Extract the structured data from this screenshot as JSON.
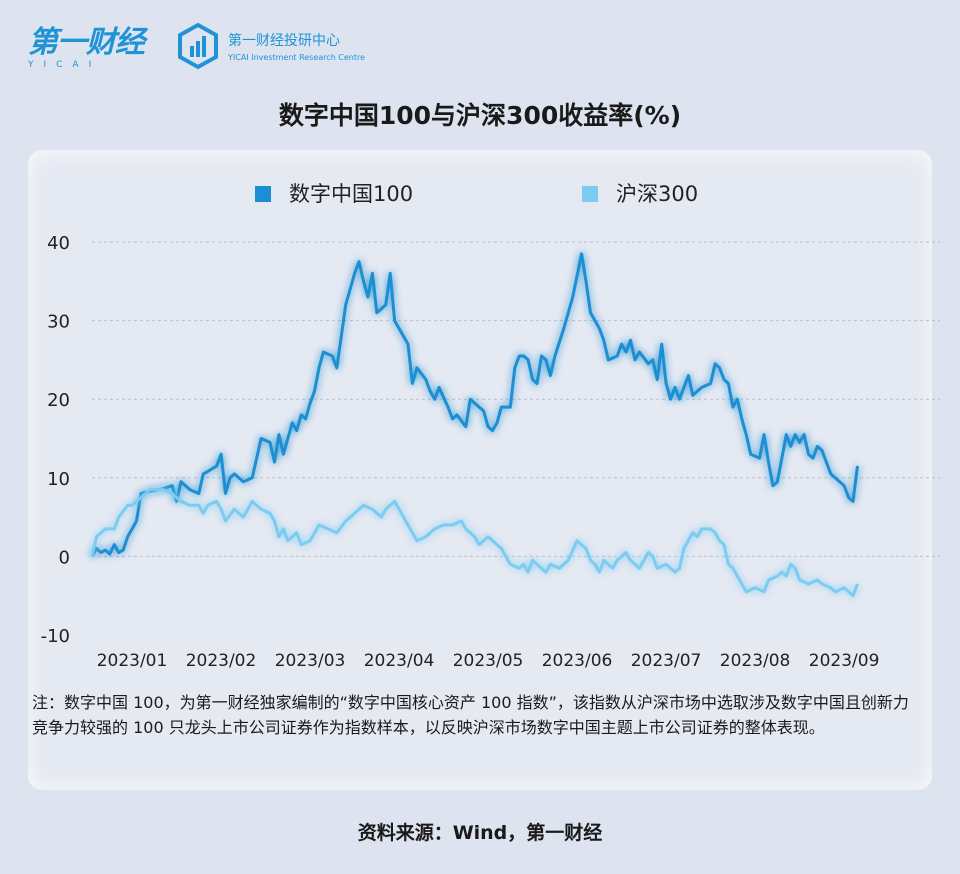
{
  "header": {
    "logo_cn": "第一财经",
    "logo_en": "YICAI",
    "research_cn": "第一财经投研中心",
    "research_en": "YICAI Investment Research Centre"
  },
  "title": "数字中国100与沪深300收益率(%)",
  "colors": {
    "series1": "#1a8fd2",
    "series2": "#7ccbf0",
    "grid": "#b9bfcb",
    "text": "#222222"
  },
  "chart_data": {
    "type": "line",
    "title": "数字中国100与沪深300收益率(%)",
    "xlabel": "",
    "ylabel": "",
    "ylim": [
      -10,
      40
    ],
    "yticks": [
      -10,
      0,
      10,
      20,
      30,
      40
    ],
    "xticks": [
      "2023/01",
      "2023/02",
      "2023/03",
      "2023/04",
      "2023/05",
      "2023/06",
      "2023/07",
      "2023/08",
      "2023/09"
    ],
    "grid": "horizontal dashed",
    "legend": "top-center",
    "x_domain": [
      0,
      9.19
    ],
    "series": [
      {
        "name": "数字中国100",
        "points": [
          [
            0.0,
            0.0
          ],
          [
            0.05,
            1.0
          ],
          [
            0.1,
            0.5
          ],
          [
            0.15,
            0.8
          ],
          [
            0.2,
            0.3
          ],
          [
            0.25,
            1.5
          ],
          [
            0.3,
            0.5
          ],
          [
            0.35,
            0.8
          ],
          [
            0.4,
            2.5
          ],
          [
            0.5,
            4.5
          ],
          [
            0.55,
            8.0
          ],
          [
            0.65,
            8.3
          ],
          [
            0.8,
            8.6
          ],
          [
            0.9,
            9.0
          ],
          [
            0.95,
            7.0
          ],
          [
            1.0,
            9.5
          ],
          [
            1.1,
            8.5
          ],
          [
            1.2,
            8.0
          ],
          [
            1.25,
            10.5
          ],
          [
            1.3,
            10.8
          ],
          [
            1.4,
            11.5
          ],
          [
            1.45,
            13.0
          ],
          [
            1.5,
            8.0
          ],
          [
            1.55,
            10.0
          ],
          [
            1.6,
            10.5
          ],
          [
            1.7,
            9.5
          ],
          [
            1.8,
            10.0
          ],
          [
            1.9,
            15.0
          ],
          [
            2.0,
            14.5
          ],
          [
            2.05,
            12.0
          ],
          [
            2.1,
            15.5
          ],
          [
            2.15,
            13.0
          ],
          [
            2.2,
            15.0
          ],
          [
            2.25,
            17.0
          ],
          [
            2.3,
            16.0
          ],
          [
            2.35,
            18.0
          ],
          [
            2.4,
            17.5
          ],
          [
            2.45,
            19.5
          ],
          [
            2.5,
            21.0
          ],
          [
            2.55,
            24.0
          ],
          [
            2.6,
            26.0
          ],
          [
            2.7,
            25.5
          ],
          [
            2.75,
            24.0
          ],
          [
            2.85,
            32.0
          ],
          [
            2.95,
            36.0
          ],
          [
            3.0,
            37.5
          ],
          [
            3.05,
            35.0
          ],
          [
            3.1,
            33.0
          ],
          [
            3.15,
            36.0
          ],
          [
            3.2,
            31.0
          ],
          [
            3.3,
            32.0
          ],
          [
            3.35,
            36.0
          ],
          [
            3.4,
            30.0
          ],
          [
            3.5,
            28.0
          ],
          [
            3.55,
            27.0
          ],
          [
            3.6,
            22.0
          ],
          [
            3.65,
            24.0
          ],
          [
            3.75,
            22.5
          ],
          [
            3.8,
            21.0
          ],
          [
            3.85,
            20.0
          ],
          [
            3.9,
            21.5
          ],
          [
            4.0,
            19.0
          ],
          [
            4.05,
            17.5
          ],
          [
            4.1,
            18.0
          ],
          [
            4.2,
            16.5
          ],
          [
            4.25,
            20.0
          ],
          [
            4.3,
            19.5
          ],
          [
            4.4,
            18.5
          ],
          [
            4.45,
            16.5
          ],
          [
            4.5,
            16.0
          ],
          [
            4.55,
            17.0
          ],
          [
            4.6,
            19.0
          ],
          [
            4.7,
            19.0
          ],
          [
            4.75,
            24.0
          ],
          [
            4.8,
            25.5
          ],
          [
            4.85,
            25.5
          ],
          [
            4.9,
            25.0
          ],
          [
            4.95,
            22.5
          ],
          [
            5.0,
            22.0
          ],
          [
            5.05,
            25.5
          ],
          [
            5.1,
            25.0
          ],
          [
            5.15,
            23.0
          ],
          [
            5.2,
            25.5
          ],
          [
            5.3,
            29.0
          ],
          [
            5.4,
            33.0
          ],
          [
            5.5,
            38.5
          ],
          [
            5.55,
            35.0
          ],
          [
            5.6,
            31.0
          ],
          [
            5.7,
            29.0
          ],
          [
            5.75,
            27.5
          ],
          [
            5.8,
            25.0
          ],
          [
            5.9,
            25.5
          ],
          [
            5.95,
            27.0
          ],
          [
            6.0,
            26.0
          ],
          [
            6.05,
            27.5
          ],
          [
            6.1,
            25.0
          ],
          [
            6.15,
            26.0
          ],
          [
            6.25,
            24.5
          ],
          [
            6.3,
            25.0
          ],
          [
            6.35,
            22.5
          ],
          [
            6.4,
            27.0
          ],
          [
            6.45,
            22.0
          ],
          [
            6.5,
            20.0
          ],
          [
            6.55,
            21.5
          ],
          [
            6.6,
            20.0
          ],
          [
            6.7,
            23.0
          ],
          [
            6.75,
            20.5
          ],
          [
            6.85,
            21.5
          ],
          [
            6.95,
            22.0
          ],
          [
            7.0,
            24.5
          ],
          [
            7.05,
            24.0
          ],
          [
            7.1,
            22.5
          ],
          [
            7.15,
            22.0
          ],
          [
            7.2,
            19.0
          ],
          [
            7.25,
            20.0
          ],
          [
            7.3,
            17.5
          ],
          [
            7.35,
            15.5
          ],
          [
            7.4,
            13.0
          ],
          [
            7.5,
            12.5
          ],
          [
            7.55,
            15.5
          ],
          [
            7.6,
            12.0
          ],
          [
            7.65,
            9.0
          ],
          [
            7.7,
            9.5
          ],
          [
            7.8,
            15.5
          ],
          [
            7.85,
            14.0
          ],
          [
            7.9,
            15.5
          ],
          [
            7.95,
            14.5
          ],
          [
            8.0,
            15.5
          ],
          [
            8.05,
            13.0
          ],
          [
            8.1,
            12.5
          ],
          [
            8.15,
            14.0
          ],
          [
            8.2,
            13.5
          ],
          [
            8.25,
            12.0
          ],
          [
            8.3,
            10.5
          ],
          [
            8.4,
            9.5
          ],
          [
            8.45,
            9.0
          ],
          [
            8.5,
            7.5
          ],
          [
            8.55,
            7.0
          ],
          [
            8.6,
            11.5
          ]
        ]
      },
      {
        "name": "沪深300",
        "points": [
          [
            0.0,
            0.0
          ],
          [
            0.05,
            2.5
          ],
          [
            0.15,
            3.5
          ],
          [
            0.25,
            3.5
          ],
          [
            0.3,
            5.0
          ],
          [
            0.4,
            6.5
          ],
          [
            0.45,
            6.5
          ],
          [
            0.55,
            7.5
          ],
          [
            0.65,
            8.5
          ],
          [
            0.8,
            8.5
          ],
          [
            0.9,
            8.0
          ],
          [
            1.0,
            7.0
          ],
          [
            1.1,
            6.5
          ],
          [
            1.2,
            6.5
          ],
          [
            1.25,
            5.5
          ],
          [
            1.3,
            6.5
          ],
          [
            1.4,
            7.0
          ],
          [
            1.45,
            6.0
          ],
          [
            1.5,
            4.5
          ],
          [
            1.6,
            6.0
          ],
          [
            1.7,
            5.0
          ],
          [
            1.8,
            7.0
          ],
          [
            1.9,
            6.0
          ],
          [
            2.0,
            5.5
          ],
          [
            2.05,
            4.5
          ],
          [
            2.1,
            2.5
          ],
          [
            2.15,
            3.5
          ],
          [
            2.2,
            2.0
          ],
          [
            2.3,
            3.0
          ],
          [
            2.35,
            1.5
          ],
          [
            2.45,
            2.0
          ],
          [
            2.55,
            4.0
          ],
          [
            2.65,
            3.5
          ],
          [
            2.75,
            3.0
          ],
          [
            2.85,
            4.5
          ],
          [
            2.95,
            5.5
          ],
          [
            3.05,
            6.5
          ],
          [
            3.15,
            6.0
          ],
          [
            3.25,
            5.0
          ],
          [
            3.3,
            6.0
          ],
          [
            3.4,
            7.0
          ],
          [
            3.45,
            6.0
          ],
          [
            3.55,
            4.0
          ],
          [
            3.6,
            3.0
          ],
          [
            3.65,
            2.0
          ],
          [
            3.75,
            2.5
          ],
          [
            3.85,
            3.5
          ],
          [
            3.95,
            4.0
          ],
          [
            4.05,
            4.0
          ],
          [
            4.15,
            4.5
          ],
          [
            4.2,
            3.5
          ],
          [
            4.3,
            2.5
          ],
          [
            4.35,
            1.5
          ],
          [
            4.45,
            2.5
          ],
          [
            4.55,
            1.5
          ],
          [
            4.6,
            1.0
          ],
          [
            4.7,
            -1.0
          ],
          [
            4.8,
            -1.5
          ],
          [
            4.85,
            -1.0
          ],
          [
            4.9,
            -2.0
          ],
          [
            4.95,
            -0.5
          ],
          [
            5.0,
            -1.0
          ],
          [
            5.1,
            -2.0
          ],
          [
            5.15,
            -1.0
          ],
          [
            5.25,
            -1.5
          ],
          [
            5.35,
            -0.5
          ],
          [
            5.45,
            2.0
          ],
          [
            5.55,
            1.0
          ],
          [
            5.6,
            -0.5
          ],
          [
            5.65,
            -1.0
          ],
          [
            5.7,
            -2.0
          ],
          [
            5.75,
            -0.5
          ],
          [
            5.85,
            -1.5
          ],
          [
            5.9,
            -0.5
          ],
          [
            6.0,
            0.5
          ],
          [
            6.05,
            -0.5
          ],
          [
            6.15,
            -1.5
          ],
          [
            6.2,
            -0.5
          ],
          [
            6.25,
            0.5
          ],
          [
            6.3,
            0.0
          ],
          [
            6.35,
            -1.5
          ],
          [
            6.45,
            -1.0
          ],
          [
            6.55,
            -2.0
          ],
          [
            6.6,
            -1.5
          ],
          [
            6.65,
            1.0
          ],
          [
            6.75,
            3.0
          ],
          [
            6.8,
            2.5
          ],
          [
            6.85,
            3.5
          ],
          [
            6.95,
            3.5
          ],
          [
            7.0,
            3.0
          ],
          [
            7.05,
            2.0
          ],
          [
            7.1,
            1.5
          ],
          [
            7.15,
            -1.0
          ],
          [
            7.2,
            -1.5
          ],
          [
            7.25,
            -2.5
          ],
          [
            7.3,
            -3.5
          ],
          [
            7.35,
            -4.5
          ],
          [
            7.45,
            -4.0
          ],
          [
            7.55,
            -4.5
          ],
          [
            7.6,
            -3.0
          ],
          [
            7.7,
            -2.5
          ],
          [
            7.75,
            -2.0
          ],
          [
            7.8,
            -2.5
          ],
          [
            7.85,
            -1.0
          ],
          [
            7.9,
            -1.5
          ],
          [
            7.95,
            -3.0
          ],
          [
            8.05,
            -3.5
          ],
          [
            8.15,
            -3.0
          ],
          [
            8.2,
            -3.5
          ],
          [
            8.3,
            -4.0
          ],
          [
            8.35,
            -4.5
          ],
          [
            8.45,
            -4.0
          ],
          [
            8.5,
            -4.5
          ],
          [
            8.55,
            -5.0
          ],
          [
            8.6,
            -3.5
          ]
        ]
      }
    ]
  },
  "note": "注：数字中国 100，为第一财经独家编制的“数字中国核心资产 100 指数”，该指数从沪深市场中选取涉及数字中国且创新力竞争力较强的 100 只龙头上市公司证券作为指数样本，以反映沪深市场数字中国主题上市公司证券的整体表现。",
  "source": "资料来源：Wind，第一财经"
}
